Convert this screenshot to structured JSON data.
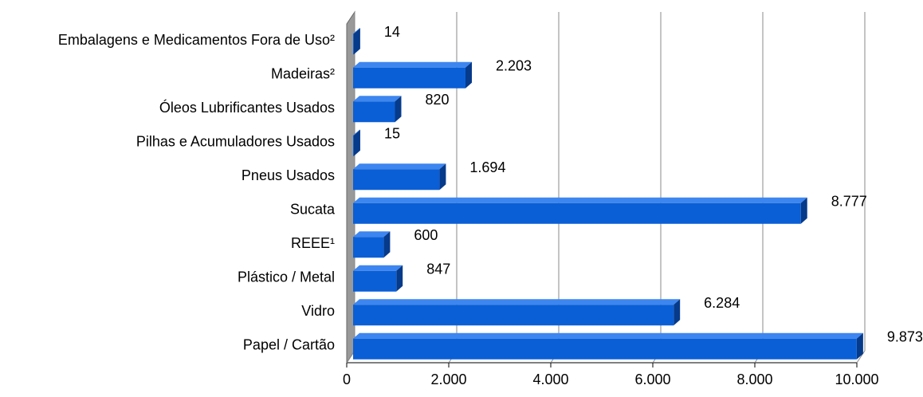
{
  "chart_data": {
    "type": "bar3d_horizontal",
    "categories": [
      "Embalagens e Medicamentos Fora de Uso²",
      "Madeiras²",
      "Óleos Lubrificantes Usados",
      "Pilhas e Acumuladores Usados",
      "Pneus Usados",
      "Sucata",
      "REEE¹",
      "Plástico / Metal",
      "Vidro",
      "Papel / Cartão"
    ],
    "values": [
      14,
      2203,
      820,
      15,
      1694,
      8777,
      600,
      847,
      6284,
      9873
    ],
    "value_labels": [
      "14",
      "2.203",
      "820",
      "15",
      "1.694",
      "8.777",
      "600",
      "847",
      "6.284",
      "9.873"
    ],
    "color": "#0a5fd6",
    "xlim": [
      0,
      10000
    ],
    "xticks": [
      0,
      {
        "value": 2000,
        "label": "2.000"
      },
      {
        "value": 4000,
        "label": "4.000"
      },
      {
        "value": 6000,
        "label": "6.000"
      },
      {
        "value": 8000,
        "label": "8.000"
      },
      {
        "value": 10000,
        "label": "10.000"
      }
    ],
    "grid": true
  }
}
